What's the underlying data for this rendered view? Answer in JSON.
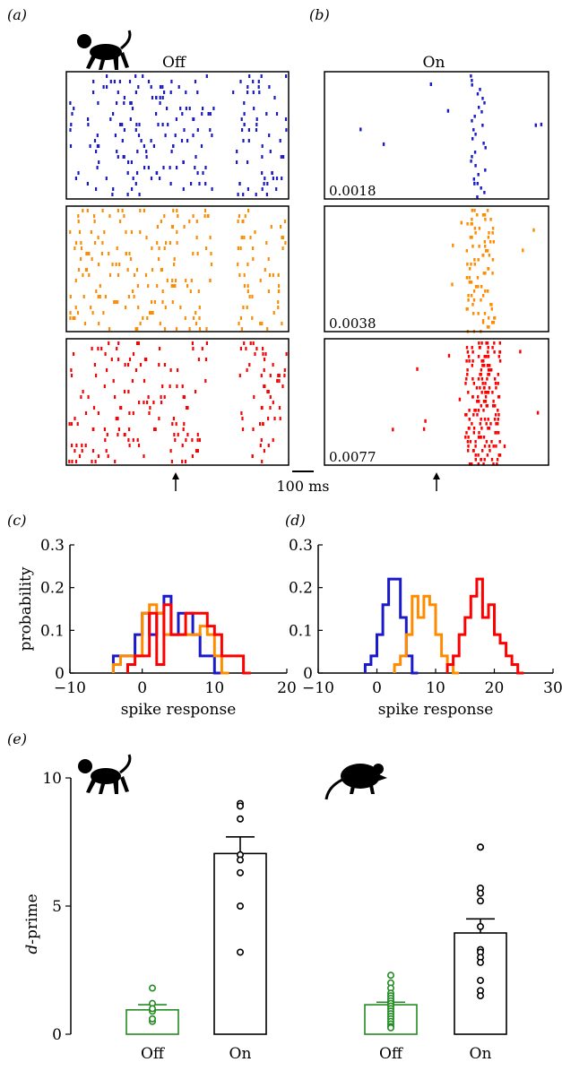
{
  "panels": {
    "a": "(a)",
    "b": "(b)",
    "c": "(c)",
    "d": "(d)",
    "e": "(e)"
  },
  "raster": {
    "off_title": "Off",
    "on_title": "On",
    "scale_bar_label": "100 ms",
    "on_values": [
      "0.0018",
      "0.0038",
      "0.0077"
    ],
    "colors": [
      "#1a1acc",
      "#ff8c00",
      "#ff0000"
    ]
  },
  "chart_data": [
    {
      "panel": "c",
      "type": "line",
      "subtype": "step-histogram",
      "xlabel": "spike response",
      "ylabel": "probability",
      "xlim": [
        -10,
        20
      ],
      "ylim": [
        0,
        0.3
      ],
      "xticks": [
        "−10",
        "0",
        "10",
        "20"
      ],
      "yticks": [
        "0",
        "0.1",
        "0.2",
        "0.3"
      ],
      "series": [
        {
          "color": "#1a1acc",
          "x": [
            -4,
            -3,
            -2,
            -1,
            0,
            1,
            2,
            3,
            4,
            5,
            6,
            7,
            8,
            9,
            10
          ],
          "values": [
            0.04,
            0.04,
            0.04,
            0.09,
            0.14,
            0.09,
            0.14,
            0.18,
            0.09,
            0.14,
            0.14,
            0.09,
            0.04,
            0.04,
            0
          ]
        },
        {
          "color": "#ff8c00",
          "x": [
            -4,
            -3,
            -2,
            -1,
            0,
            1,
            2,
            3,
            4,
            5,
            6,
            7,
            8,
            9,
            10,
            11
          ],
          "values": [
            0.02,
            0.04,
            0.04,
            0.04,
            0.14,
            0.16,
            0.14,
            0.09,
            0.09,
            0.09,
            0.09,
            0.09,
            0.11,
            0.09,
            0.04,
            0
          ]
        },
        {
          "color": "#ff0000",
          "x": [
            -2,
            -1,
            0,
            1,
            2,
            3,
            4,
            5,
            6,
            7,
            8,
            9,
            10,
            11,
            12,
            13,
            14
          ],
          "values": [
            0.02,
            0.04,
            0.04,
            0.14,
            0.02,
            0.16,
            0.09,
            0.09,
            0.14,
            0.14,
            0.14,
            0.11,
            0.09,
            0.04,
            0.04,
            0.04,
            0
          ]
        }
      ]
    },
    {
      "panel": "d",
      "type": "line",
      "subtype": "step-histogram",
      "xlabel": "spike response",
      "ylabel": "",
      "xlim": [
        -10,
        30
      ],
      "ylim": [
        0,
        0.3
      ],
      "xticks": [
        "−10",
        "0",
        "10",
        "20",
        "30"
      ],
      "yticks": [
        "0",
        "0.1",
        "0.2",
        "0.3"
      ],
      "series": [
        {
          "color": "#1a1acc",
          "x": [
            -2,
            -1,
            0,
            1,
            2,
            3,
            4,
            5,
            6
          ],
          "values": [
            0.02,
            0.04,
            0.09,
            0.16,
            0.22,
            0.22,
            0.13,
            0.04,
            0
          ]
        },
        {
          "color": "#ff8c00",
          "x": [
            3,
            4,
            5,
            6,
            7,
            8,
            9,
            10,
            11,
            12,
            13
          ],
          "values": [
            0.02,
            0.04,
            0.09,
            0.18,
            0.13,
            0.18,
            0.16,
            0.09,
            0.04,
            0.02,
            0
          ]
        },
        {
          "color": "#ff0000",
          "x": [
            12,
            13,
            14,
            15,
            16,
            17,
            18,
            19,
            20,
            21,
            22,
            23,
            24
          ],
          "values": [
            0.02,
            0.04,
            0.09,
            0.13,
            0.18,
            0.22,
            0.13,
            0.16,
            0.09,
            0.07,
            0.04,
            0.02,
            0
          ]
        }
      ]
    },
    {
      "panel": "e",
      "type": "bar",
      "ylabel_italic": "d",
      "ylabel_rest": "-prime",
      "ylim": [
        0,
        10
      ],
      "yticks": [
        "0",
        "5",
        "10"
      ],
      "categories": [
        "Off",
        "On",
        "Off",
        "On"
      ],
      "values": [
        0.95,
        7.05,
        1.15,
        3.95
      ],
      "errors": [
        0.2,
        0.65,
        0.1,
        0.55
      ],
      "edge_colors": [
        "#228b22",
        "#000000",
        "#228b22",
        "#000000"
      ],
      "points": [
        [
          1.8,
          1.2,
          0.9,
          0.5,
          0.6,
          1.0
        ],
        [
          9.0,
          8.9,
          8.4,
          7.0,
          6.8,
          6.3,
          5.0,
          3.2
        ],
        [
          2.3,
          2.0,
          1.8,
          1.6,
          1.5,
          1.4,
          1.3,
          1.2,
          1.1,
          1.0,
          0.9,
          0.8,
          0.7,
          0.6,
          0.5,
          0.4,
          0.3,
          0.25
        ],
        [
          7.3,
          7.3,
          5.7,
          5.5,
          5.2,
          4.2,
          3.3,
          3.2,
          3.0,
          2.8,
          2.1,
          1.7,
          1.5
        ]
      ]
    }
  ],
  "icons": [
    "monkey-silhouette-icon",
    "monkey-silhouette-icon",
    "mouse-silhouette-icon"
  ]
}
